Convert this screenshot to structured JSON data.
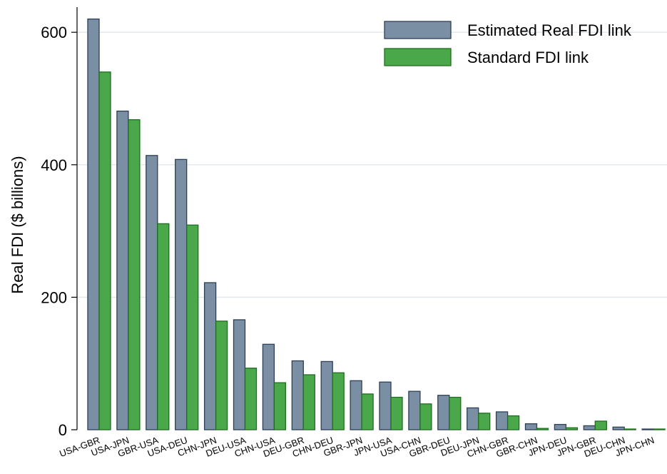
{
  "chart_data": {
    "type": "bar",
    "title": "",
    "xlabel": "",
    "ylabel": "Real FDI ($ billions)",
    "ylim": [
      0,
      625
    ],
    "yticks": [
      0,
      200,
      400,
      600
    ],
    "grid": true,
    "legend_position": "top-right",
    "categories": [
      "USA-GBR",
      "USA-JPN",
      "GBR-USA",
      "USA-DEU",
      "CHN-JPN",
      "DEU-USA",
      "CHN-USA",
      "DEU-GBR",
      "CHN-DEU",
      "GBR-JPN",
      "JPN-USA",
      "USA-CHN",
      "GBR-DEU",
      "DEU-JPN",
      "CHN-GBR",
      "GBR-CHN",
      "JPN-DEU",
      "JPN-GBR",
      "DEU-CHN",
      "JPN-CHN"
    ],
    "series": [
      {
        "name": "Estimated Real FDI link",
        "color": "#7a8fa3",
        "stroke": "#2e3f55",
        "values": [
          620,
          481,
          414,
          408,
          222,
          166,
          129,
          104,
          103,
          74,
          72,
          58,
          52,
          33,
          27,
          9,
          8,
          6,
          4,
          1
        ]
      },
      {
        "name": "Standard FDI link",
        "color": "#4aa84a",
        "stroke": "#1f6e1f",
        "values": [
          540,
          468,
          311,
          309,
          164,
          93,
          71,
          83,
          86,
          54,
          49,
          39,
          49,
          25,
          21,
          2,
          3,
          13,
          1,
          1
        ]
      }
    ]
  }
}
